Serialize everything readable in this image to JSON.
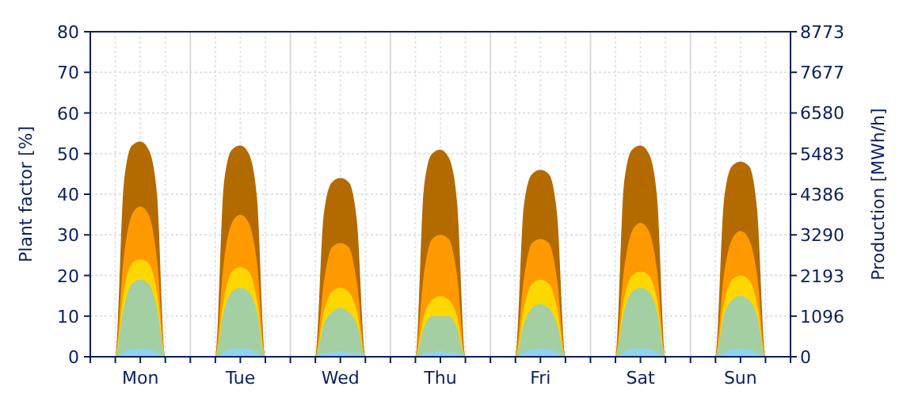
{
  "chart_data": {
    "type": "area",
    "ylabel": "Plant factor [%]",
    "y2label": "Production [MWh/h]",
    "categories": [
      null,
      null,
      null,
      null,
      null,
      null,
      "Mon",
      null,
      null,
      null,
      null,
      null,
      null,
      null,
      null,
      null,
      null,
      null,
      "Tue",
      null,
      null,
      null,
      null,
      null,
      null,
      null,
      null,
      null,
      null,
      null,
      "Wed",
      null,
      null,
      null,
      null,
      null,
      null,
      null,
      null,
      null,
      null,
      null,
      "Thu",
      null,
      null,
      null,
      null,
      null,
      null,
      null,
      null,
      null,
      null,
      null,
      "Fri",
      null,
      null,
      null,
      null,
      null,
      null,
      null,
      null,
      null,
      null,
      null,
      "Sat",
      null,
      null,
      null,
      null,
      null,
      null,
      null,
      null,
      null,
      null,
      null,
      "Sun",
      null,
      null,
      null,
      null,
      null,
      null
    ],
    "ylim": [
      0,
      80
    ],
    "yticks": [
      0,
      10,
      20,
      30,
      40,
      50,
      60,
      70,
      80
    ],
    "y2lim": [
      0,
      8773
    ],
    "y2ticks": [
      0,
      1096,
      2193,
      3290,
      4386,
      5483,
      6580,
      7677,
      8773
    ],
    "grid": true,
    "series": [
      {
        "color": "#b36b00",
        "values": [
          0,
          0,
          0,
          0,
          42,
          52,
          53,
          51,
          40,
          0,
          0,
          0,
          0,
          0,
          0,
          0,
          42,
          51,
          52,
          50,
          39,
          0,
          0,
          0,
          0,
          0,
          0,
          0,
          35,
          43,
          44,
          43,
          33,
          0,
          0,
          0,
          0,
          0,
          0,
          0,
          41,
          50,
          51,
          49,
          38,
          0,
          0,
          0,
          0,
          0,
          0,
          0,
          37,
          45,
          46,
          45,
          35,
          0,
          0,
          0,
          0,
          0,
          0,
          0,
          42,
          51,
          52,
          50,
          39,
          0,
          0,
          0,
          0,
          0,
          0,
          0,
          38,
          47,
          48,
          47,
          36,
          0,
          0,
          0,
          0
        ]
      },
      {
        "color": "#ff9900",
        "values": [
          0,
          0,
          0,
          0,
          24,
          35,
          37,
          35,
          24,
          0,
          0,
          0,
          0,
          0,
          0,
          0,
          23,
          33,
          35,
          33,
          23,
          0,
          0,
          0,
          0,
          0,
          0,
          0,
          18,
          27,
          28,
          27,
          18,
          0,
          0,
          0,
          0,
          0,
          0,
          0,
          20,
          29,
          30,
          29,
          20,
          0,
          0,
          0,
          0,
          0,
          0,
          0,
          19,
          28,
          29,
          28,
          19,
          0,
          0,
          0,
          0,
          0,
          0,
          0,
          21,
          31,
          33,
          31,
          21,
          0,
          0,
          0,
          0,
          0,
          0,
          0,
          20,
          29,
          31,
          29,
          20,
          0,
          0,
          0,
          0
        ]
      },
      {
        "color": "#ffd700",
        "values": [
          0,
          0,
          0,
          0,
          16,
          23,
          24,
          23,
          16,
          0,
          0,
          0,
          0,
          0,
          0,
          0,
          14,
          21,
          22,
          21,
          14,
          0,
          0,
          0,
          0,
          0,
          0,
          0,
          11,
          16,
          17,
          16,
          11,
          0,
          0,
          0,
          0,
          0,
          0,
          0,
          10,
          14,
          15,
          14,
          10,
          0,
          0,
          0,
          0,
          0,
          0,
          0,
          12,
          18,
          19,
          18,
          12,
          0,
          0,
          0,
          0,
          0,
          0,
          0,
          14,
          20,
          21,
          20,
          14,
          0,
          0,
          0,
          0,
          0,
          0,
          0,
          13,
          19,
          20,
          19,
          13,
          0,
          0,
          0,
          0
        ]
      },
      {
        "color": "#a3cfa3",
        "values": [
          0,
          0,
          0,
          0,
          12,
          18,
          19,
          18,
          12,
          0,
          0,
          0,
          0,
          0,
          0,
          0,
          11,
          16,
          17,
          16,
          11,
          0,
          0,
          0,
          0,
          0,
          0,
          0,
          8,
          11,
          12,
          11,
          8,
          0,
          0,
          0,
          0,
          0,
          0,
          0,
          7,
          10,
          10,
          10,
          7,
          0,
          0,
          0,
          0,
          0,
          0,
          0,
          8,
          12,
          13,
          12,
          8,
          0,
          0,
          0,
          0,
          0,
          0,
          0,
          11,
          16,
          17,
          16,
          11,
          0,
          0,
          0,
          0,
          0,
          0,
          0,
          10,
          14,
          15,
          14,
          10,
          0,
          0,
          0,
          0
        ]
      },
      {
        "color": "#8fd3f0",
        "values": [
          0,
          0,
          0,
          0,
          1,
          2,
          2,
          2,
          1,
          0,
          0,
          0,
          0,
          0,
          0,
          0,
          1,
          2,
          2,
          2,
          1,
          0,
          0,
          0,
          0,
          0,
          0,
          0,
          1,
          1,
          1.5,
          1,
          1,
          0,
          0,
          0,
          0,
          0,
          0,
          0,
          1,
          1,
          1.5,
          1,
          1,
          0,
          0,
          0,
          0,
          0,
          0,
          0,
          1,
          2,
          2,
          2,
          1,
          0,
          0,
          0,
          0,
          0,
          0,
          0,
          1,
          2,
          2,
          2,
          1,
          0,
          0,
          0,
          0,
          0,
          0,
          0,
          1,
          2,
          2,
          2,
          1,
          0,
          0,
          0,
          0
        ]
      }
    ]
  }
}
